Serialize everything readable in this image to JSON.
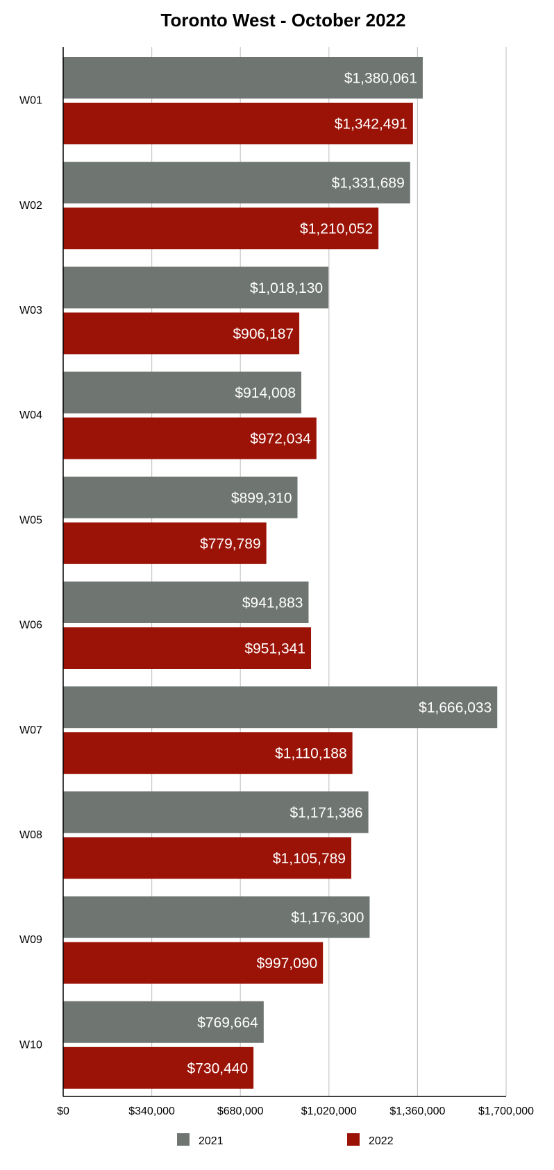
{
  "chart_data": {
    "type": "bar",
    "orientation": "horizontal",
    "title": "Toronto West - October 2022",
    "xlabel": "",
    "ylabel": "",
    "categories": [
      "W01",
      "W02",
      "W03",
      "W04",
      "W05",
      "W06",
      "W07",
      "W08",
      "W09",
      "W10"
    ],
    "series": [
      {
        "name": "2021",
        "color": "#6f7672",
        "values": [
          1380061,
          1331689,
          1018130,
          914008,
          899310,
          941883,
          1666033,
          1171386,
          1176300,
          769664
        ],
        "labels": [
          "$1,380,061",
          "$1,331,689",
          "$1,018,130",
          "$914,008",
          "$899,310",
          "$941,883",
          "$1,666,033",
          "$1,171,386",
          "$1,176,300",
          "$769,664"
        ]
      },
      {
        "name": "2022",
        "color": "#9b1206",
        "values": [
          1342491,
          1210052,
          906187,
          972034,
          779789,
          951341,
          1110188,
          1105789,
          997090,
          730440
        ],
        "labels": [
          "$1,342,491",
          "$1,210,052",
          "$906,187",
          "$972,034",
          "$779,789",
          "$951,341",
          "$1,110,188",
          "$1,105,789",
          "$997,090",
          "$730,440"
        ]
      }
    ],
    "xlim": [
      0,
      1700000
    ],
    "xticks": [
      0,
      340000,
      680000,
      1020000,
      1360000,
      1700000
    ],
    "xtick_labels": [
      "$0",
      "$340,000",
      "$680,000",
      "$1,020,000",
      "$1,360,000",
      "$1,700,000"
    ],
    "grid": true,
    "legend_position": "bottom"
  }
}
